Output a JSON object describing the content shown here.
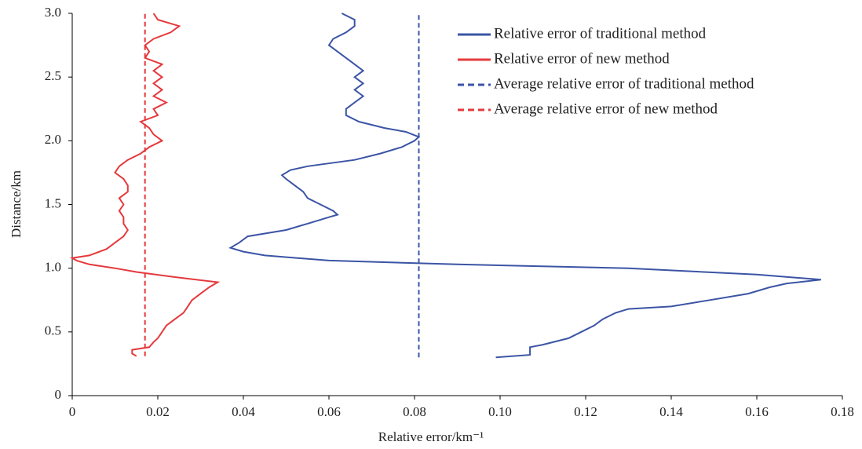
{
  "chart_data": {
    "type": "line",
    "x_label": "Relative error/km⁻¹",
    "y_label": "Distance/km",
    "xlim": [
      0,
      0.18
    ],
    "ylim": [
      0,
      3.0
    ],
    "xticks": [
      0,
      0.02,
      0.04,
      0.06,
      0.08,
      {
        "value": 0.1,
        "label": "0.10"
      },
      0.12,
      0.14,
      0.16,
      0.18
    ],
    "yticks": [
      0,
      0.5,
      {
        "value": 1,
        "label": "1.0"
      },
      1.5,
      {
        "value": 2,
        "label": "2.0"
      },
      2.5,
      {
        "value": 3,
        "label": "3.0"
      }
    ],
    "legend": "upper right",
    "series": [
      {
        "name": "Relative error of traditional method",
        "color": "#3b54a5",
        "dashed": false,
        "x": [
          0.099,
          0.107,
          0.107,
          0.11,
          0.116,
          0.119,
          0.122,
          0.124,
          0.127,
          0.13,
          0.14,
          0.149,
          0.158,
          0.163,
          0.167,
          0.175,
          0.16,
          0.13,
          0.09,
          0.06,
          0.045,
          0.04,
          0.037,
          0.039,
          0.041,
          0.05,
          0.055,
          0.06,
          0.062,
          0.061,
          0.058,
          0.055,
          0.054,
          0.052,
          0.05,
          0.049,
          0.051,
          0.055,
          0.066,
          0.072,
          0.077,
          0.08,
          0.081,
          0.078,
          0.073,
          0.067,
          0.064,
          0.064,
          0.066,
          0.068,
          0.066,
          0.068,
          0.066,
          0.068,
          0.066,
          0.064,
          0.062,
          0.06,
          0.061,
          0.064,
          0.066,
          0.066,
          0.063
        ],
        "y": [
          0.3,
          0.32,
          0.38,
          0.4,
          0.45,
          0.5,
          0.55,
          0.6,
          0.65,
          0.68,
          0.7,
          0.75,
          0.8,
          0.85,
          0.88,
          0.91,
          0.95,
          1.0,
          1.03,
          1.06,
          1.1,
          1.13,
          1.16,
          1.2,
          1.25,
          1.3,
          1.35,
          1.4,
          1.42,
          1.45,
          1.5,
          1.55,
          1.6,
          1.65,
          1.7,
          1.73,
          1.77,
          1.8,
          1.85,
          1.9,
          1.95,
          2.0,
          2.03,
          2.07,
          2.1,
          2.15,
          2.2,
          2.25,
          2.3,
          2.35,
          2.4,
          2.45,
          2.5,
          2.55,
          2.6,
          2.65,
          2.7,
          2.75,
          2.8,
          2.85,
          2.9,
          2.95,
          3.0
        ]
      },
      {
        "name": "Relative error of new method",
        "color": "#e5393d",
        "dashed": false,
        "x": [
          0.015,
          0.014,
          0.014,
          0.018,
          0.019,
          0.02,
          0.021,
          0.022,
          0.024,
          0.026,
          0.027,
          0.028,
          0.03,
          0.032,
          0.034,
          0.024,
          0.015,
          0.01,
          0.004,
          0.001,
          0.0,
          0.004,
          0.008,
          0.01,
          0.012,
          0.013,
          0.012,
          0.012,
          0.011,
          0.012,
          0.011,
          0.013,
          0.013,
          0.012,
          0.01,
          0.011,
          0.013,
          0.016,
          0.018,
          0.021,
          0.019,
          0.018,
          0.016,
          0.02,
          0.019,
          0.022,
          0.019,
          0.021,
          0.019,
          0.021,
          0.019,
          0.021,
          0.017,
          0.018,
          0.017,
          0.019,
          0.023,
          0.025,
          0.02,
          0.019
        ],
        "y": [
          0.31,
          0.33,
          0.36,
          0.38,
          0.42,
          0.45,
          0.5,
          0.55,
          0.6,
          0.65,
          0.7,
          0.75,
          0.8,
          0.85,
          0.89,
          0.93,
          0.97,
          1.0,
          1.03,
          1.06,
          1.08,
          1.1,
          1.15,
          1.2,
          1.25,
          1.3,
          1.35,
          1.4,
          1.45,
          1.5,
          1.55,
          1.6,
          1.65,
          1.7,
          1.75,
          1.8,
          1.85,
          1.9,
          1.95,
          2.0,
          2.05,
          2.1,
          2.15,
          2.2,
          2.25,
          2.3,
          2.35,
          2.4,
          2.45,
          2.5,
          2.55,
          2.6,
          2.65,
          2.7,
          2.75,
          2.8,
          2.85,
          2.9,
          2.95,
          3.0
        ]
      },
      {
        "name": "Average relative error of traditional method",
        "color": "#3b54a5",
        "dashed": true,
        "x": [
          0.081,
          0.081
        ],
        "y": [
          0.3,
          3.0
        ]
      },
      {
        "name": "Average relative error of new method",
        "color": "#e5393d",
        "dashed": true,
        "x": [
          0.017,
          0.017
        ],
        "y": [
          0.31,
          3.0
        ]
      }
    ]
  }
}
